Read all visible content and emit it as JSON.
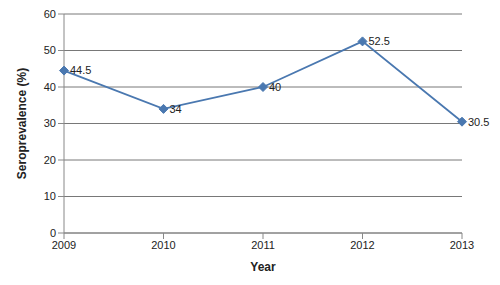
{
  "chart_data": {
    "type": "line",
    "x_label": "Year",
    "y_label": "Seroprevalence (%)",
    "categories": [
      "2009",
      "2010",
      "2011",
      "2012",
      "2013"
    ],
    "values": [
      44.5,
      34,
      40,
      52.5,
      30.5
    ],
    "color": "#4a78b0",
    "marker": "diamond",
    "ylim": [
      0,
      60
    ],
    "yticks": [
      0,
      10,
      20,
      30,
      40,
      50,
      60
    ],
    "grid": true,
    "data_labels": true
  }
}
